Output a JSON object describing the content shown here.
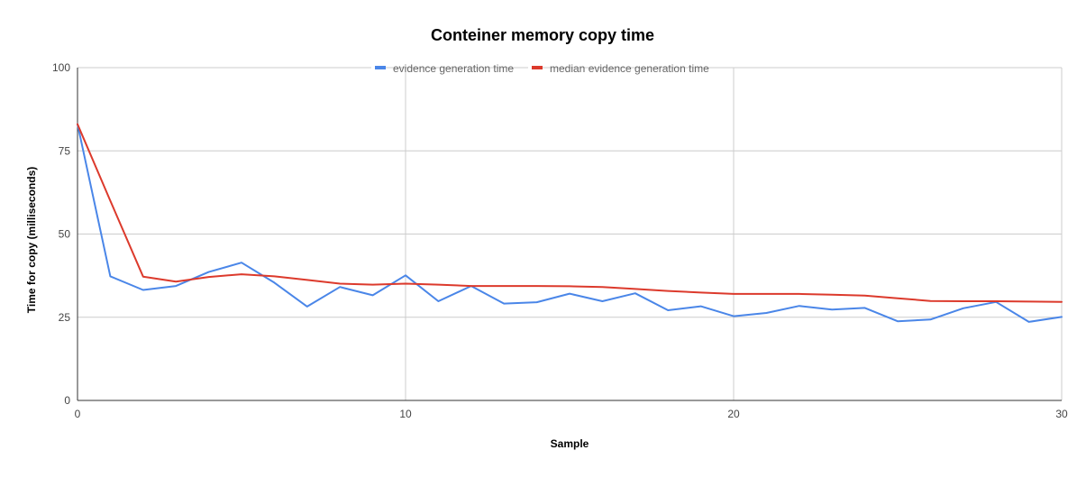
{
  "chart_data": {
    "type": "line",
    "title": "Conteiner memory copy time",
    "xlabel": "Sample",
    "ylabel": "Time for copy (milliseconds)",
    "xlim": [
      0,
      30
    ],
    "ylim": [
      0,
      100
    ],
    "x_ticks": [
      0,
      10,
      20,
      30
    ],
    "y_ticks": [
      0,
      25,
      50,
      75,
      100
    ],
    "grid": true,
    "legend_position": "top",
    "x": [
      0,
      1,
      2,
      3,
      4,
      5,
      6,
      7,
      8,
      9,
      10,
      11,
      12,
      13,
      14,
      15,
      16,
      17,
      18,
      19,
      20,
      21,
      22,
      23,
      24,
      25,
      26,
      27,
      28,
      29,
      30
    ],
    "series": [
      {
        "name": "evidence generation  time",
        "color": "#4a86e8",
        "values": [
          83,
          37.3,
          33.2,
          34.4,
          38.6,
          41.4,
          35.4,
          28.2,
          34.1,
          31.6,
          37.6,
          29.8,
          34.4,
          29.1,
          29.5,
          32.1,
          29.8,
          32.2,
          27.1,
          28.3,
          25.3,
          26.3,
          28.4,
          27.3,
          27.8,
          23.8,
          24.3,
          27.7,
          29.6,
          23.6,
          25.1
        ]
      },
      {
        "name": "median evidence generation time",
        "color": "#dc3a2c",
        "values": [
          83,
          60,
          37.2,
          35.7,
          37.1,
          37.9,
          37.3,
          36.2,
          35.1,
          34.8,
          35.1,
          34.8,
          34.4,
          34.4,
          34.4,
          34.3,
          34.1,
          33.5,
          32.9,
          32.4,
          32.0,
          32.0,
          32.0,
          31.8,
          31.5,
          30.7,
          29.9,
          29.8,
          29.8,
          29.7,
          29.6
        ]
      }
    ]
  }
}
